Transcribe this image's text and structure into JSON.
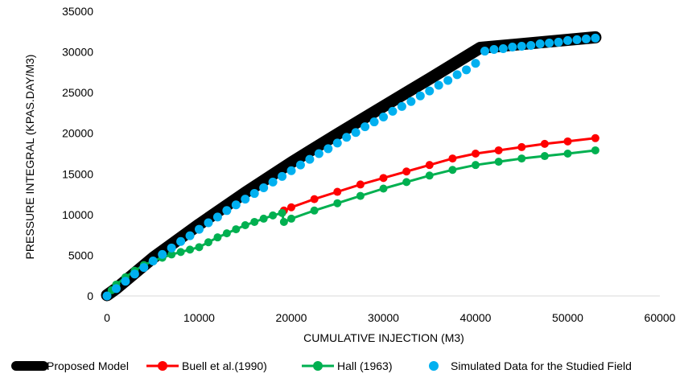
{
  "chart_data": {
    "type": "scatter",
    "xlabel": "CUMULATIVE INJECTION (M3)",
    "ylabel": "PRESSURE INTEGRAL (KPAS.DAY/M3)",
    "xlim": [
      0,
      60000
    ],
    "ylim": [
      0,
      35000
    ],
    "x_ticks": [
      "0",
      "10000",
      "20000",
      "30000",
      "40000",
      "50000",
      "60000"
    ],
    "y_ticks": [
      "0",
      "5000",
      "10000",
      "15000",
      "20000",
      "25000",
      "30000",
      "35000"
    ],
    "grid": false,
    "legend_position": "bottom",
    "series": [
      {
        "name": "Proposed Model",
        "style": "thick-line",
        "color": "#000000",
        "x": [
          0,
          1000,
          5000,
          10000,
          15000,
          20000,
          25000,
          30000,
          35000,
          40500,
          53000
        ],
        "y": [
          100,
          900,
          4700,
          8800,
          12700,
          16400,
          19900,
          23300,
          26700,
          30500,
          31800
        ]
      },
      {
        "name": "Buell et al.(1990)",
        "style": "line-markers",
        "color": "#ff0000",
        "x": [
          19200,
          20000,
          22500,
          25000,
          27500,
          30000,
          32500,
          35000,
          37500,
          40000,
          42500,
          45000,
          47500,
          50000,
          53000
        ],
        "y": [
          10500,
          10900,
          11900,
          12800,
          13700,
          14500,
          15300,
          16100,
          16900,
          17500,
          17900,
          18300,
          18700,
          19000,
          19400
        ]
      },
      {
        "name": "Hall (1963)",
        "style": "line-markers",
        "color": "#00b050",
        "x": [
          0,
          500,
          1000,
          2000,
          3000,
          4000,
          5000,
          6000,
          7000,
          8000,
          9000,
          10000,
          11000,
          12000,
          13000,
          14000,
          15000,
          16000,
          17000,
          18000,
          19000,
          19200,
          20000,
          22500,
          25000,
          27500,
          30000,
          32500,
          35000,
          37500,
          40000,
          42500,
          45000,
          47500,
          50000,
          53000
        ],
        "y": [
          0,
          700,
          1400,
          2300,
          3100,
          3800,
          4300,
          4700,
          5100,
          5400,
          5700,
          6000,
          6600,
          7200,
          7700,
          8200,
          8700,
          9100,
          9500,
          9900,
          10200,
          9100,
          9500,
          10500,
          11400,
          12300,
          13200,
          14000,
          14800,
          15500,
          16100,
          16500,
          16900,
          17200,
          17500,
          17900
        ]
      },
      {
        "name": "Simulated Data for the Studied Field",
        "style": "markers",
        "color": "#00b0f0",
        "x": [
          0,
          1000,
          2000,
          3000,
          4000,
          5000,
          6000,
          7000,
          8000,
          9000,
          10000,
          11000,
          12000,
          13000,
          14000,
          15000,
          16000,
          17000,
          18000,
          19000,
          20000,
          21000,
          22000,
          23000,
          24000,
          25000,
          26000,
          27000,
          28000,
          29000,
          30000,
          31000,
          32000,
          33000,
          34000,
          35000,
          36000,
          37000,
          38000,
          39000,
          40000,
          41000,
          42000,
          43000,
          44000,
          45000,
          46000,
          47000,
          48000,
          49000,
          50000,
          51000,
          52000,
          53000
        ],
        "y": [
          0,
          900,
          1800,
          2700,
          3500,
          4300,
          5100,
          5900,
          6700,
          7400,
          8200,
          9000,
          9700,
          10500,
          11200,
          11900,
          12600,
          13300,
          14000,
          14700,
          15400,
          16100,
          16800,
          17500,
          18100,
          18800,
          19500,
          20100,
          20800,
          21400,
          22000,
          22700,
          23300,
          23900,
          24600,
          25200,
          25900,
          26500,
          27200,
          27800,
          28600,
          30100,
          30300,
          30400,
          30600,
          30700,
          30800,
          31000,
          31100,
          31200,
          31400,
          31500,
          31600,
          31700
        ]
      }
    ]
  }
}
